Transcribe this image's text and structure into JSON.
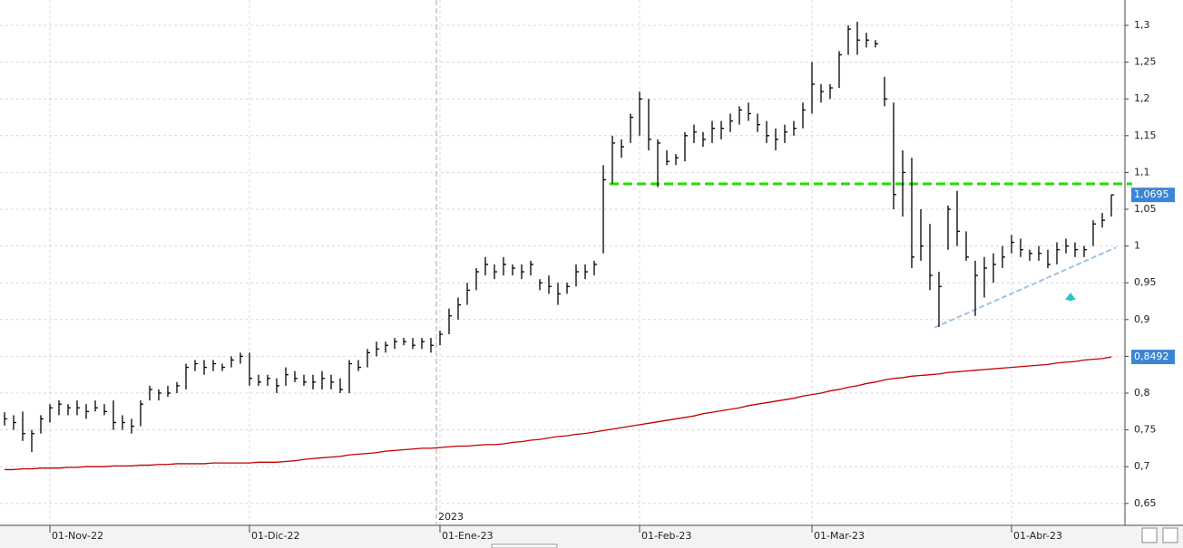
{
  "chart_data": {
    "type": "ohlc",
    "categories": [
      null,
      null,
      null,
      null,
      null,
      "01-Nov-22",
      null,
      null,
      null,
      null,
      null,
      null,
      null,
      null,
      null,
      null,
      null,
      null,
      null,
      null,
      null,
      null,
      null,
      null,
      null,
      null,
      null,
      "01-Dic-22",
      null,
      null,
      null,
      null,
      null,
      null,
      null,
      null,
      null,
      null,
      null,
      null,
      null,
      null,
      null,
      null,
      null,
      null,
      null,
      null,
      "01-Ene-23",
      null,
      null,
      null,
      null,
      null,
      null,
      null,
      null,
      null,
      null,
      null,
      null,
      null,
      null,
      null,
      null,
      null,
      null,
      null,
      null,
      null,
      "01-Feb-23",
      null,
      null,
      null,
      null,
      null,
      null,
      null,
      null,
      null,
      null,
      null,
      null,
      null,
      null,
      null,
      null,
      null,
      null,
      "01-Mar-23",
      null,
      null,
      null,
      null,
      null,
      null,
      null,
      null,
      null,
      null,
      null,
      null,
      null,
      null,
      null,
      null,
      null,
      null,
      null,
      null,
      null,
      "01-Abr-23",
      null,
      null,
      null,
      null,
      null,
      null,
      null,
      null,
      null,
      null
    ],
    "year_label": "2023",
    "price": {
      "color": "#000000",
      "last_label": "1,0695",
      "tag_color": "#3b86d4",
      "high": [
        0.774,
        0.77,
        0.775,
        0.75,
        0.77,
        0.785,
        0.79,
        0.785,
        0.79,
        0.785,
        0.79,
        0.785,
        0.79,
        0.77,
        0.765,
        0.79,
        0.81,
        0.805,
        0.81,
        0.815,
        0.84,
        0.845,
        0.845,
        0.845,
        0.84,
        0.85,
        0.855,
        0.855,
        0.825,
        0.825,
        0.82,
        0.835,
        0.83,
        0.825,
        0.825,
        0.83,
        0.825,
        0.82,
        0.845,
        0.845,
        0.86,
        0.87,
        0.87,
        0.875,
        0.875,
        0.875,
        0.875,
        0.875,
        0.885,
        0.915,
        0.93,
        0.95,
        0.97,
        0.985,
        0.975,
        0.985,
        0.975,
        0.975,
        0.98,
        0.955,
        0.96,
        0.95,
        0.95,
        0.975,
        0.975,
        0.98,
        1.11,
        1.15,
        1.145,
        1.18,
        1.21,
        1.2,
        1.145,
        1.13,
        1.125,
        1.155,
        1.165,
        1.155,
        1.17,
        1.17,
        1.18,
        1.19,
        1.195,
        1.18,
        1.17,
        1.16,
        1.165,
        1.17,
        1.195,
        1.25,
        1.22,
        1.22,
        1.265,
        1.3,
        1.305,
        1.29,
        1.28,
        1.23,
        1.195,
        1.13,
        1.12,
        1.05,
        1.03,
        0.965,
        1.055,
        1.075,
        1.02,
        0.98,
        0.985,
        0.99,
        1.0,
        1.015,
        1.01,
        0.995,
        1.0,
        0.995,
        1.005,
        1.01,
        1.005,
        1.0,
        1.035,
        1.045,
        1.07
      ],
      "low": [
        0.756,
        0.75,
        0.735,
        0.72,
        0.745,
        0.76,
        0.77,
        0.77,
        0.77,
        0.765,
        0.775,
        0.77,
        0.75,
        0.75,
        0.745,
        0.755,
        0.79,
        0.79,
        0.795,
        0.8,
        0.805,
        0.83,
        0.825,
        0.83,
        0.83,
        0.835,
        0.84,
        0.81,
        0.81,
        0.81,
        0.8,
        0.81,
        0.815,
        0.81,
        0.805,
        0.805,
        0.805,
        0.8,
        0.8,
        0.83,
        0.835,
        0.85,
        0.855,
        0.86,
        0.865,
        0.86,
        0.86,
        0.855,
        0.865,
        0.88,
        0.9,
        0.92,
        0.94,
        0.96,
        0.955,
        0.96,
        0.96,
        0.955,
        0.96,
        0.94,
        0.935,
        0.92,
        0.935,
        0.945,
        0.955,
        0.96,
        0.99,
        1.085,
        1.12,
        1.14,
        1.15,
        1.13,
        1.08,
        1.11,
        1.11,
        1.115,
        1.14,
        1.135,
        1.14,
        1.145,
        1.155,
        1.165,
        1.17,
        1.155,
        1.14,
        1.13,
        1.14,
        1.15,
        1.16,
        1.18,
        1.195,
        1.2,
        1.215,
        1.26,
        1.26,
        1.27,
        1.27,
        1.19,
        1.05,
        1.04,
        0.97,
        0.98,
        0.94,
        0.89,
        0.995,
        1.0,
        0.98,
        0.905,
        0.93,
        0.95,
        0.97,
        0.99,
        0.985,
        0.98,
        0.98,
        0.97,
        0.975,
        0.99,
        0.985,
        0.985,
        1.0,
        1.025,
        1.04
      ],
      "close": [
        0.765,
        0.76,
        0.745,
        0.745,
        0.765,
        0.78,
        0.785,
        0.78,
        0.78,
        0.775,
        0.78,
        0.775,
        0.76,
        0.76,
        0.755,
        0.785,
        0.805,
        0.8,
        0.8,
        0.81,
        0.835,
        0.84,
        0.835,
        0.84,
        0.835,
        0.845,
        0.85,
        0.82,
        0.815,
        0.82,
        0.81,
        0.825,
        0.82,
        0.815,
        0.815,
        0.82,
        0.815,
        0.805,
        0.84,
        0.835,
        0.855,
        0.86,
        0.865,
        0.87,
        0.87,
        0.865,
        0.87,
        0.865,
        0.88,
        0.905,
        0.92,
        0.94,
        0.965,
        0.975,
        0.965,
        0.975,
        0.97,
        0.965,
        0.975,
        0.95,
        0.945,
        0.935,
        0.945,
        0.965,
        0.965,
        0.975,
        1.09,
        1.14,
        1.135,
        1.175,
        1.2,
        1.145,
        1.14,
        1.115,
        1.12,
        1.15,
        1.155,
        1.145,
        1.16,
        1.16,
        1.17,
        1.185,
        1.18,
        1.165,
        1.15,
        1.145,
        1.155,
        1.16,
        1.185,
        1.22,
        1.21,
        1.215,
        1.26,
        1.295,
        1.28,
        1.28,
        1.275,
        1.2,
        1.07,
        1.1,
        0.985,
        1.0,
        0.96,
        0.945,
        1.05,
        1.02,
        0.985,
        0.96,
        0.97,
        0.975,
        0.985,
        1.005,
        0.995,
        0.99,
        0.99,
        0.975,
        0.995,
        1.0,
        0.995,
        0.995,
        1.03,
        1.035,
        1.0695
      ]
    },
    "moving_average": {
      "color": "#c00000",
      "last_label": "0,8492",
      "tag_color": "#3b86d4",
      "values": [
        0.696,
        0.696,
        0.697,
        0.697,
        0.698,
        0.698,
        0.698,
        0.699,
        0.699,
        0.7,
        0.7,
        0.7,
        0.701,
        0.701,
        0.701,
        0.702,
        0.702,
        0.703,
        0.703,
        0.704,
        0.704,
        0.704,
        0.704,
        0.705,
        0.705,
        0.705,
        0.705,
        0.705,
        0.706,
        0.706,
        0.706,
        0.707,
        0.708,
        0.71,
        0.711,
        0.712,
        0.713,
        0.714,
        0.716,
        0.717,
        0.718,
        0.719,
        0.721,
        0.722,
        0.723,
        0.724,
        0.725,
        0.725,
        0.726,
        0.727,
        0.728,
        0.728,
        0.729,
        0.73,
        0.73,
        0.731,
        0.733,
        0.734,
        0.736,
        0.737,
        0.739,
        0.741,
        0.742,
        0.744,
        0.745,
        0.747,
        0.749,
        0.751,
        0.753,
        0.755,
        0.757,
        0.759,
        0.761,
        0.763,
        0.765,
        0.767,
        0.769,
        0.772,
        0.774,
        0.776,
        0.778,
        0.78,
        0.783,
        0.785,
        0.787,
        0.789,
        0.791,
        0.793,
        0.796,
        0.798,
        0.8,
        0.803,
        0.805,
        0.808,
        0.81,
        0.813,
        0.815,
        0.818,
        0.82,
        0.821,
        0.823,
        0.824,
        0.825,
        0.826,
        0.828,
        0.829,
        0.83,
        0.831,
        0.832,
        0.833,
        0.834,
        0.835,
        0.836,
        0.837,
        0.838,
        0.839,
        0.841,
        0.842,
        0.843,
        0.845,
        0.846,
        0.847,
        0.8492
      ]
    },
    "resistance": {
      "value": 1.0845,
      "color": "#22dd00"
    },
    "trendline": {
      "values": [
        0.889,
        0.998
      ],
      "color": "#9cc3e6"
    },
    "ylim": [
      0.6202,
      1.3345
    ],
    "yticks": [
      {
        "value": 0.65,
        "label": "0,65"
      },
      {
        "value": 0.7,
        "label": "0,7"
      },
      {
        "value": 0.75,
        "label": "0,75"
      },
      {
        "value": 0.8,
        "label": "0,8"
      },
      {
        "value": 0.85,
        "label": "0,85"
      },
      {
        "value": 0.9,
        "label": "0,9"
      },
      {
        "value": 0.95,
        "label": "0,95"
      },
      1,
      {
        "value": 1.05,
        "label": "1,05"
      },
      {
        "value": 1.1,
        "label": "1,1"
      },
      {
        "value": 1.15,
        "label": "1,15"
      },
      {
        "value": 1.2,
        "label": "1,2"
      },
      {
        "value": 1.25,
        "label": "1,25"
      },
      {
        "value": 1.3,
        "label": "1,3"
      }
    ],
    "grid": true
  }
}
